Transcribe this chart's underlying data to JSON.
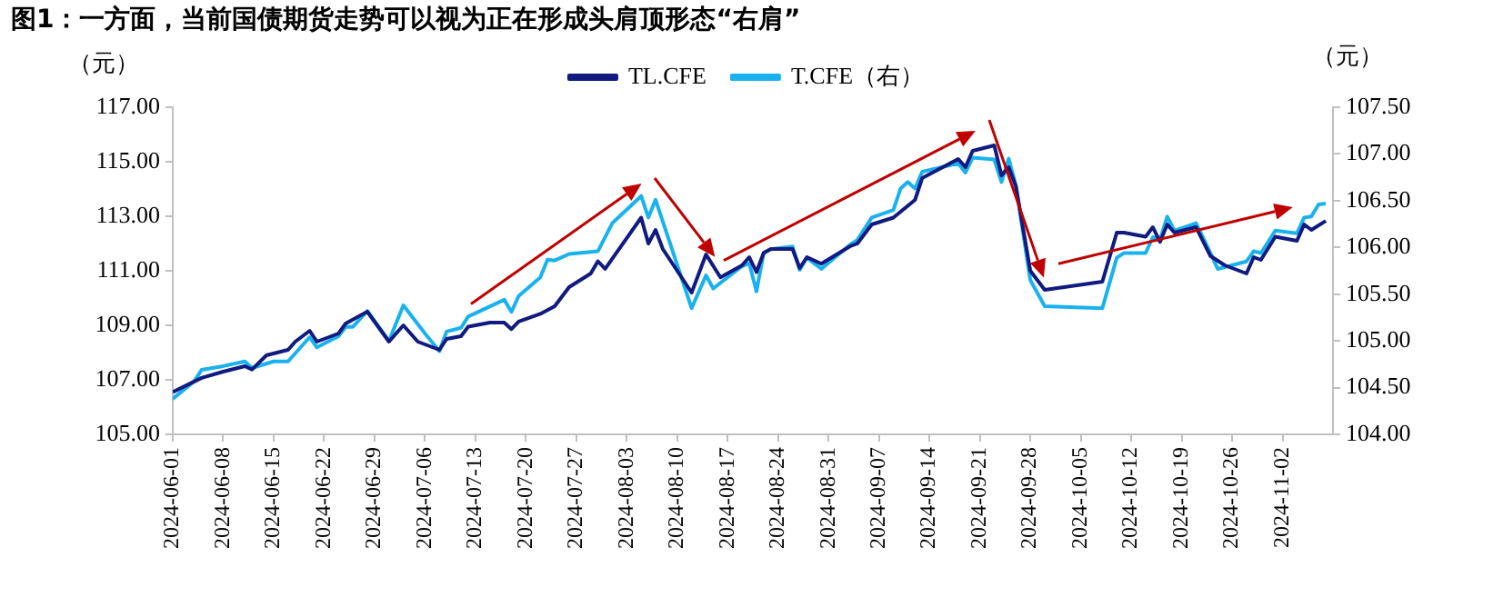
{
  "chart_data": {
    "type": "line",
    "title": "图1：一方面，当前国债期货走势可以视为正在形成头肩顶形态“右肩”",
    "ylabel": "（元）",
    "y2label": "（元）",
    "legend": "top",
    "xlim": [
      "2024-06-01",
      "2024-11-09"
    ],
    "xticks": [
      "2024-06-01",
      "2024-06-08",
      "2024-06-15",
      "2024-06-22",
      "2024-06-29",
      "2024-07-06",
      "2024-07-13",
      "2024-07-20",
      "2024-07-27",
      "2024-08-03",
      "2024-08-10",
      "2024-08-17",
      "2024-08-24",
      "2024-08-31",
      "2024-09-07",
      "2024-09-14",
      "2024-09-21",
      "2024-09-28",
      "2024-10-05",
      "2024-10-12",
      "2024-10-19",
      "2024-10-26",
      "2024-11-02"
    ],
    "ylim": [
      105,
      117
    ],
    "yticks": [
      {
        "value": 105,
        "label": "105.00"
      },
      {
        "value": 107,
        "label": "107.00"
      },
      {
        "value": 109,
        "label": "109.00"
      },
      {
        "value": 111,
        "label": "111.00"
      },
      {
        "value": 113,
        "label": "113.00"
      },
      {
        "value": 115,
        "label": "115.00"
      },
      {
        "value": 117,
        "label": "117.00"
      }
    ],
    "y2lim": [
      104,
      107.5
    ],
    "y2ticks": [
      {
        "value": 104,
        "label": "104.00"
      },
      {
        "value": 104.5,
        "label": "104.50"
      },
      {
        "value": 105,
        "label": "105.00"
      },
      {
        "value": 105.5,
        "label": "105.50"
      },
      {
        "value": 106,
        "label": "106.00"
      },
      {
        "value": 106.5,
        "label": "106.50"
      },
      {
        "value": 107,
        "label": "107.00"
      },
      {
        "value": 107.5,
        "label": "107.50"
      }
    ],
    "series": [
      {
        "name": "TL.CFE",
        "color": "#101a80",
        "x": [
          "2024-06-01",
          "2024-06-05",
          "2024-06-08",
          "2024-06-11",
          "2024-06-12",
          "2024-06-14",
          "2024-06-17",
          "2024-06-18",
          "2024-06-20",
          "2024-06-21",
          "2024-06-24",
          "2024-06-25",
          "2024-06-28",
          "2024-07-01",
          "2024-07-03",
          "2024-07-05",
          "2024-07-08",
          "2024-07-09",
          "2024-07-11",
          "2024-07-12",
          "2024-07-15",
          "2024-07-17",
          "2024-07-18",
          "2024-07-19",
          "2024-07-22",
          "2024-07-24",
          "2024-07-26",
          "2024-07-29",
          "2024-07-30",
          "2024-07-31",
          "2024-08-05",
          "2024-08-06",
          "2024-08-07",
          "2024-08-08",
          "2024-08-12",
          "2024-08-14",
          "2024-08-16",
          "2024-08-19",
          "2024-08-20",
          "2024-08-21",
          "2024-08-22",
          "2024-08-23",
          "2024-08-26",
          "2024-08-27",
          "2024-08-28",
          "2024-08-30",
          "2024-09-03",
          "2024-09-04",
          "2024-09-06",
          "2024-09-09",
          "2024-09-12",
          "2024-09-13",
          "2024-09-18",
          "2024-09-19",
          "2024-09-20",
          "2024-09-23",
          "2024-09-24",
          "2024-09-25",
          "2024-09-26",
          "2024-09-28",
          "2024-09-30",
          "2024-10-08",
          "2024-10-10",
          "2024-10-11",
          "2024-10-14",
          "2024-10-15",
          "2024-10-16",
          "2024-10-17",
          "2024-10-18",
          "2024-10-21",
          "2024-10-23",
          "2024-10-25",
          "2024-10-28",
          "2024-10-29",
          "2024-10-30",
          "2024-11-01",
          "2024-11-04",
          "2024-11-05",
          "2024-11-06",
          "2024-11-08"
        ],
        "values": [
          106.55,
          107.07,
          107.3,
          107.5,
          107.38,
          107.9,
          108.1,
          108.4,
          108.8,
          108.4,
          108.7,
          109.07,
          109.5,
          108.4,
          109.0,
          108.4,
          108.1,
          108.5,
          108.6,
          108.95,
          109.1,
          109.1,
          108.86,
          109.14,
          109.42,
          109.7,
          110.4,
          110.9,
          111.35,
          111.07,
          112.95,
          112.0,
          112.5,
          111.8,
          110.2,
          111.6,
          110.76,
          111.2,
          111.5,
          110.95,
          111.66,
          111.8,
          111.8,
          111.1,
          111.5,
          111.26,
          111.9,
          112.0,
          112.7,
          112.95,
          113.6,
          114.4,
          115.1,
          114.8,
          115.4,
          115.6,
          114.5,
          114.8,
          114.1,
          111.0,
          110.3,
          110.6,
          112.4,
          112.4,
          112.25,
          112.6,
          112.06,
          112.7,
          112.4,
          112.6,
          111.54,
          111.2,
          110.9,
          111.5,
          111.4,
          112.25,
          112.1,
          112.7,
          112.5,
          112.83
        ]
      },
      {
        "name": "T.CFE（右）",
        "color": "#1ab2ee",
        "axis": "y2",
        "x": [
          "2024-06-01",
          "2024-06-04",
          "2024-06-05",
          "2024-06-08",
          "2024-06-11",
          "2024-06-12",
          "2024-06-15",
          "2024-06-17",
          "2024-06-20",
          "2024-06-21",
          "2024-06-24",
          "2024-06-25",
          "2024-06-26",
          "2024-06-28",
          "2024-07-01",
          "2024-07-03",
          "2024-07-06",
          "2024-07-08",
          "2024-07-09",
          "2024-07-11",
          "2024-07-12",
          "2024-07-17",
          "2024-07-18",
          "2024-07-19",
          "2024-07-22",
          "2024-07-23",
          "2024-07-24",
          "2024-07-26",
          "2024-07-30",
          "2024-08-01",
          "2024-08-05",
          "2024-08-06",
          "2024-08-07",
          "2024-08-12",
          "2024-08-14",
          "2024-08-15",
          "2024-08-19",
          "2024-08-20",
          "2024-08-21",
          "2024-08-22",
          "2024-08-23",
          "2024-08-26",
          "2024-08-27",
          "2024-08-28",
          "2024-08-30",
          "2024-09-03",
          "2024-09-04",
          "2024-09-06",
          "2024-09-09",
          "2024-09-10",
          "2024-09-11",
          "2024-09-12",
          "2024-09-13",
          "2024-09-18",
          "2024-09-19",
          "2024-09-20",
          "2024-09-23",
          "2024-09-24",
          "2024-09-25",
          "2024-09-26",
          "2024-09-28",
          "2024-09-30",
          "2024-10-08",
          "2024-10-10",
          "2024-10-11",
          "2024-10-14",
          "2024-10-15",
          "2024-10-16",
          "2024-10-17",
          "2024-10-18",
          "2024-10-21",
          "2024-10-23",
          "2024-10-24",
          "2024-10-28",
          "2024-10-29",
          "2024-10-30",
          "2024-11-01",
          "2024-11-04",
          "2024-11-05",
          "2024-11-06",
          "2024-11-07",
          "2024-11-08"
        ],
        "values": [
          104.38,
          104.57,
          104.69,
          104.73,
          104.78,
          104.71,
          104.78,
          104.78,
          105.04,
          104.93,
          105.05,
          105.15,
          105.15,
          105.32,
          105.0,
          105.38,
          105.08,
          104.89,
          105.1,
          105.14,
          105.26,
          105.44,
          105.31,
          105.48,
          105.68,
          105.87,
          105.86,
          105.93,
          105.96,
          106.26,
          106.55,
          106.32,
          106.51,
          105.35,
          105.7,
          105.56,
          105.8,
          105.83,
          105.53,
          105.94,
          105.98,
          106.01,
          105.76,
          105.89,
          105.77,
          106.03,
          106.08,
          106.32,
          106.4,
          106.63,
          106.7,
          106.63,
          106.81,
          106.9,
          106.8,
          106.96,
          106.94,
          106.7,
          106.95,
          106.66,
          105.65,
          105.37,
          105.35,
          105.89,
          105.94,
          105.94,
          106.11,
          106.08,
          106.33,
          106.18,
          106.26,
          105.94,
          105.77,
          105.85,
          105.96,
          105.94,
          106.18,
          106.15,
          106.32,
          106.33,
          106.46,
          106.47
        ]
      }
    ]
  }
}
